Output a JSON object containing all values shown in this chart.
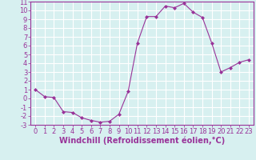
{
  "x": [
    0,
    1,
    2,
    3,
    4,
    5,
    6,
    7,
    8,
    9,
    10,
    11,
    12,
    13,
    14,
    15,
    16,
    17,
    18,
    19,
    20,
    21,
    22,
    23
  ],
  "y": [
    1.0,
    0.2,
    0.1,
    -1.5,
    -1.6,
    -2.2,
    -2.5,
    -2.7,
    -2.6,
    -1.8,
    0.8,
    6.3,
    9.3,
    9.3,
    10.5,
    10.3,
    10.8,
    9.8,
    9.2,
    6.3,
    3.0,
    3.5,
    4.1,
    4.4
  ],
  "line_color": "#993399",
  "marker": "D",
  "marker_size": 2,
  "bg_color": "#d7f0f0",
  "grid_color": "#ffffff",
  "xlabel": "Windchill (Refroidissement éolien,°C)",
  "xlim": [
    -0.5,
    23.5
  ],
  "ylim": [
    -3,
    11
  ],
  "yticks": [
    -3,
    -2,
    -1,
    0,
    1,
    2,
    3,
    4,
    5,
    6,
    7,
    8,
    9,
    10,
    11
  ],
  "xticks": [
    0,
    1,
    2,
    3,
    4,
    5,
    6,
    7,
    8,
    9,
    10,
    11,
    12,
    13,
    14,
    15,
    16,
    17,
    18,
    19,
    20,
    21,
    22,
    23
  ],
  "tick_color": "#993399",
  "label_color": "#993399",
  "font_size": 6,
  "xlabel_fontsize": 7
}
